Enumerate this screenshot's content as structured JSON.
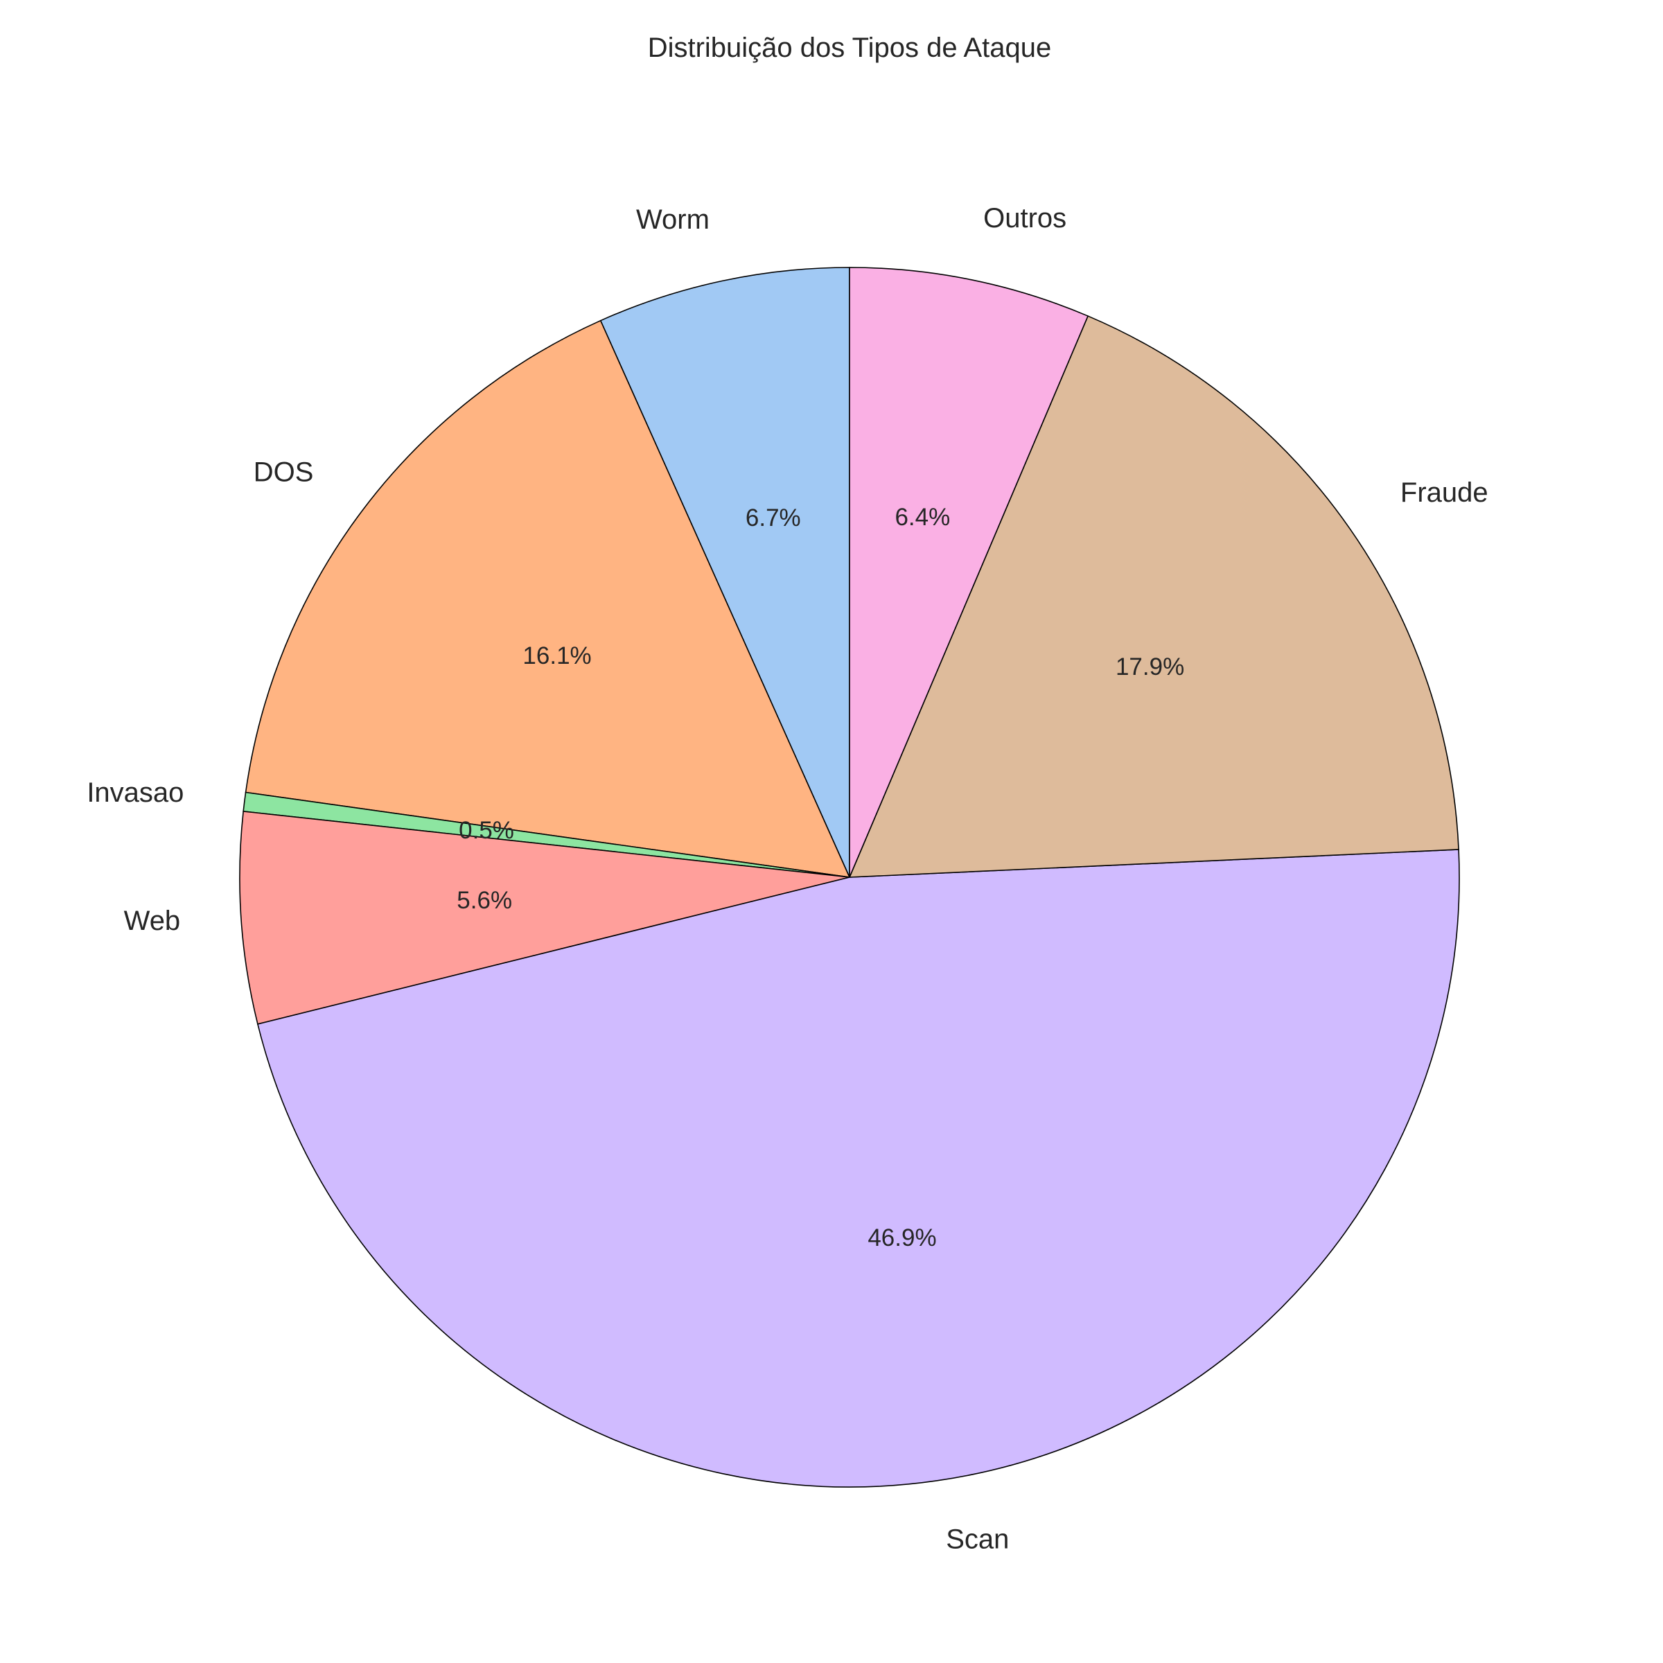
{
  "chart_data": {
    "type": "pie",
    "title": "Distribuição dos Tipos de Ataque",
    "start_angle_deg": 90,
    "direction": "counterclockwise",
    "slices": [
      {
        "label": "Worm",
        "value": 6.7,
        "pct_label": "6.7%",
        "color": "#a1c9f4"
      },
      {
        "label": "DOS",
        "value": 16.1,
        "pct_label": "16.1%",
        "color": "#ffb482"
      },
      {
        "label": "Invasao",
        "value": 0.5,
        "pct_label": "0.5%",
        "color": "#8de5a1"
      },
      {
        "label": "Web",
        "value": 5.6,
        "pct_label": "5.6%",
        "color": "#ff9f9b"
      },
      {
        "label": "Scan",
        "value": 46.9,
        "pct_label": "46.9%",
        "color": "#d0bbff"
      },
      {
        "label": "Fraude",
        "value": 17.9,
        "pct_label": "17.9%",
        "color": "#debb9b"
      },
      {
        "label": "Outros",
        "value": 6.4,
        "pct_label": "6.4%",
        "color": "#fab0e4"
      }
    ]
  }
}
